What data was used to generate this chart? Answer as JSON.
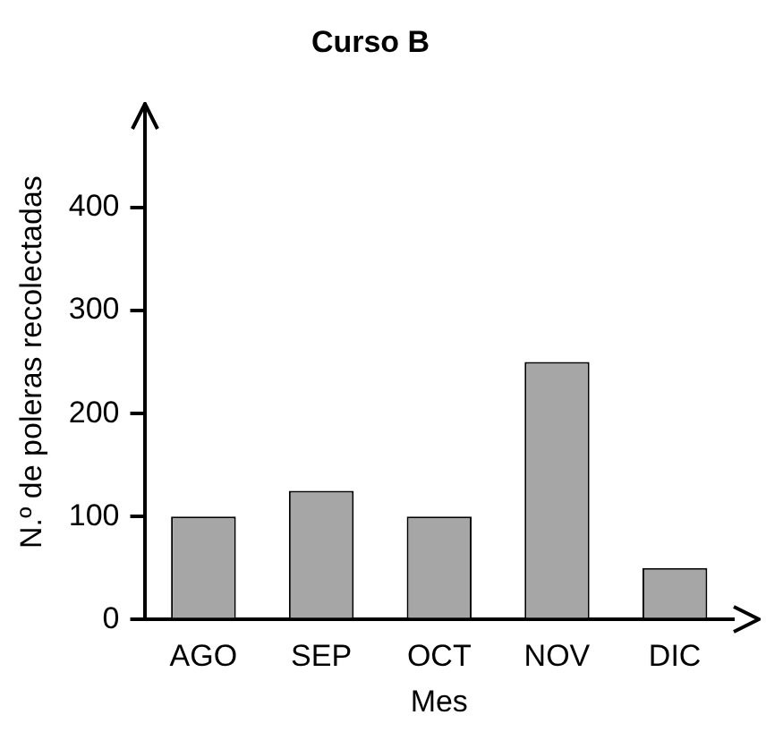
{
  "chart_data": {
    "type": "bar",
    "title": "Curso B",
    "xlabel": "Mes",
    "ylabel": "N.º de poleras recolectadas",
    "categories": [
      "AGO",
      "SEP",
      "OCT",
      "NOV",
      "DIC"
    ],
    "values": [
      100,
      125,
      100,
      250,
      50
    ],
    "color": "#a6a6a6",
    "ylim": [
      0,
      500
    ],
    "yticks": [
      0,
      100,
      200,
      300,
      400
    ],
    "grid": false,
    "legend": false
  }
}
